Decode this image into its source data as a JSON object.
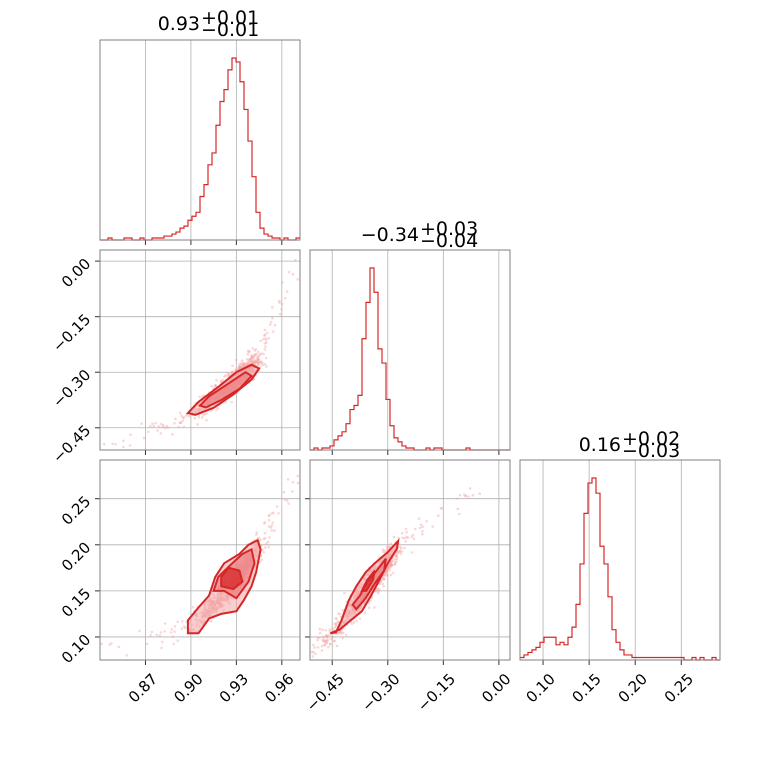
{
  "figure": {
    "type": "corner-plot",
    "line_color": "#d62728",
    "fill_color_light": "#f4a6a7",
    "fill_color_mid": "#e9787a",
    "fill_color_dark": "#d62728"
  },
  "titles": [
    {
      "median": "0.93",
      "upper": "+0.01",
      "lower": "−0.01"
    },
    {
      "median": "−0.34",
      "upper": "+0.03",
      "lower": "−0.04"
    },
    {
      "median": "0.16",
      "upper": "+0.02",
      "lower": "−0.03"
    }
  ],
  "chart_data": {
    "type": "corner",
    "parameters": [
      {
        "range": [
          0.84,
          0.972
        ],
        "ticks": [
          0.87,
          0.9,
          0.93,
          0.96
        ],
        "tick_labels": [
          "0.87",
          "0.90",
          "0.93",
          "0.96"
        ],
        "median": 0.93,
        "upper_err": 0.01,
        "lower_err": 0.01
      },
      {
        "range": [
          -0.51,
          0.03
        ],
        "ticks": [
          -0.45,
          -0.3,
          -0.15,
          0.0
        ],
        "tick_labels": [
          "−0.45",
          "−0.30",
          "−0.15",
          "0.00"
        ],
        "median": -0.34,
        "upper_err": 0.03,
        "lower_err": 0.04
      },
      {
        "range": [
          0.075,
          0.292
        ],
        "ticks": [
          0.1,
          0.15,
          0.2,
          0.25
        ],
        "tick_labels": [
          "0.10",
          "0.15",
          "0.20",
          "0.25"
        ],
        "median": 0.16,
        "upper_err": 0.02,
        "lower_err": 0.03
      }
    ],
    "histograms": [
      {
        "param": 0,
        "bin_width": 0.00264,
        "start": 0.84,
        "counts": [
          0,
          0,
          1,
          0,
          0,
          0,
          1,
          1,
          0,
          0,
          1,
          0,
          0,
          1,
          1,
          1,
          2,
          2,
          3,
          4,
          6,
          7,
          10,
          12,
          14,
          22,
          28,
          38,
          44,
          58,
          70,
          76,
          86,
          92,
          90,
          80,
          66,
          50,
          32,
          14,
          6,
          3,
          2,
          1,
          1,
          0,
          1,
          0,
          0,
          1
        ]
      },
      {
        "param": 1,
        "bin_width": 0.0108,
        "start": -0.51,
        "counts": [
          0,
          1,
          0,
          1,
          1,
          2,
          5,
          7,
          9,
          13,
          20,
          22,
          27,
          55,
          73,
          90,
          78,
          50,
          43,
          25,
          12,
          6,
          4,
          2,
          1,
          1,
          0,
          0,
          0,
          1,
          0,
          1,
          1,
          0,
          0,
          0,
          0,
          0,
          0,
          1,
          0,
          0,
          0,
          0,
          0,
          0,
          0,
          0,
          0,
          0
        ]
      },
      {
        "param": 2,
        "bin_width": 0.00434,
        "start": 0.075,
        "counts": [
          1,
          2,
          3,
          4,
          5,
          7,
          9,
          9,
          9,
          6,
          7,
          6,
          9,
          13,
          22,
          38,
          58,
          70,
          72,
          66,
          45,
          38,
          25,
          12,
          7,
          4,
          2,
          2,
          1,
          1,
          1,
          1,
          1,
          1,
          1,
          1,
          1,
          1,
          1,
          1,
          1,
          0,
          0,
          1,
          0,
          1,
          0,
          0,
          1,
          0
        ]
      }
    ],
    "pairs": [
      {
        "x_param": 0,
        "y_param": 1,
        "trend": [
          [
            0.84,
            -0.51
          ],
          [
            0.9,
            -0.42
          ],
          [
            0.93,
            -0.32
          ],
          [
            0.945,
            -0.26
          ],
          [
            0.97,
            0.01
          ]
        ],
        "contours": [
          [
            [
              0.903,
              -0.415
            ],
            [
              0.915,
              -0.396
            ],
            [
              0.928,
              -0.36
            ],
            [
              0.94,
              -0.32
            ],
            [
              0.945,
              -0.29
            ],
            [
              0.94,
              -0.28
            ],
            [
              0.93,
              -0.3
            ],
            [
              0.918,
              -0.34
            ],
            [
              0.905,
              -0.38
            ],
            [
              0.898,
              -0.41
            ]
          ],
          [
            [
              0.91,
              -0.395
            ],
            [
              0.92,
              -0.375
            ],
            [
              0.932,
              -0.345
            ],
            [
              0.94,
              -0.31
            ],
            [
              0.936,
              -0.3
            ],
            [
              0.925,
              -0.33
            ],
            [
              0.912,
              -0.365
            ],
            [
              0.906,
              -0.39
            ]
          ]
        ]
      },
      {
        "x_param": 0,
        "y_param": 2,
        "trend": [
          [
            0.84,
            0.09
          ],
          [
            0.9,
            0.11
          ],
          [
            0.93,
            0.16
          ],
          [
            0.945,
            0.2
          ],
          [
            0.97,
            0.27
          ]
        ],
        "contours": [
          [
            [
              0.898,
              0.104
            ],
            [
              0.905,
              0.104
            ],
            [
              0.912,
              0.12
            ],
            [
              0.92,
              0.125
            ],
            [
              0.93,
              0.128
            ],
            [
              0.935,
              0.14
            ],
            [
              0.94,
              0.155
            ],
            [
              0.943,
              0.17
            ],
            [
              0.946,
              0.195
            ],
            [
              0.944,
              0.205
            ],
            [
              0.938,
              0.2
            ],
            [
              0.932,
              0.19
            ],
            [
              0.922,
              0.18
            ],
            [
              0.916,
              0.165
            ],
            [
              0.912,
              0.145
            ],
            [
              0.905,
              0.132
            ],
            [
              0.898,
              0.118
            ]
          ],
          [
            [
              0.915,
              0.15
            ],
            [
              0.922,
              0.15
            ],
            [
              0.93,
              0.142
            ],
            [
              0.938,
              0.16
            ],
            [
              0.942,
              0.18
            ],
            [
              0.94,
              0.195
            ],
            [
              0.934,
              0.19
            ],
            [
              0.926,
              0.178
            ],
            [
              0.918,
              0.165
            ]
          ],
          [
            [
              0.92,
              0.155
            ],
            [
              0.928,
              0.152
            ],
            [
              0.934,
              0.16
            ],
            [
              0.932,
              0.172
            ],
            [
              0.925,
              0.175
            ],
            [
              0.92,
              0.165
            ]
          ]
        ]
      },
      {
        "x_param": 1,
        "y_param": 2,
        "trend": [
          [
            -0.51,
            0.09
          ],
          [
            -0.45,
            0.1
          ],
          [
            -0.34,
            0.16
          ],
          [
            -0.27,
            0.2
          ],
          [
            -0.02,
            0.27
          ]
        ],
        "contours": [
          [
            [
              -0.455,
              0.104
            ],
            [
              -0.44,
              0.105
            ],
            [
              -0.425,
              0.118
            ],
            [
              -0.405,
              0.14
            ],
            [
              -0.385,
              0.155
            ],
            [
              -0.36,
              0.17
            ],
            [
              -0.335,
              0.18
            ],
            [
              -0.3,
              0.192
            ],
            [
              -0.272,
              0.204
            ],
            [
              -0.275,
              0.196
            ],
            [
              -0.3,
              0.18
            ],
            [
              -0.32,
              0.164
            ],
            [
              -0.345,
              0.145
            ],
            [
              -0.37,
              0.128
            ],
            [
              -0.4,
              0.118
            ],
            [
              -0.43,
              0.108
            ]
          ],
          [
            [
              -0.395,
              0.135
            ],
            [
              -0.375,
              0.145
            ],
            [
              -0.355,
              0.16
            ],
            [
              -0.33,
              0.172
            ],
            [
              -0.305,
              0.185
            ],
            [
              -0.31,
              0.172
            ],
            [
              -0.335,
              0.158
            ],
            [
              -0.36,
              0.142
            ],
            [
              -0.385,
              0.13
            ]
          ],
          [
            [
              -0.37,
              0.15
            ],
            [
              -0.355,
              0.162
            ],
            [
              -0.335,
              0.172
            ],
            [
              -0.34,
              0.162
            ],
            [
              -0.358,
              0.15
            ]
          ]
        ]
      }
    ]
  }
}
